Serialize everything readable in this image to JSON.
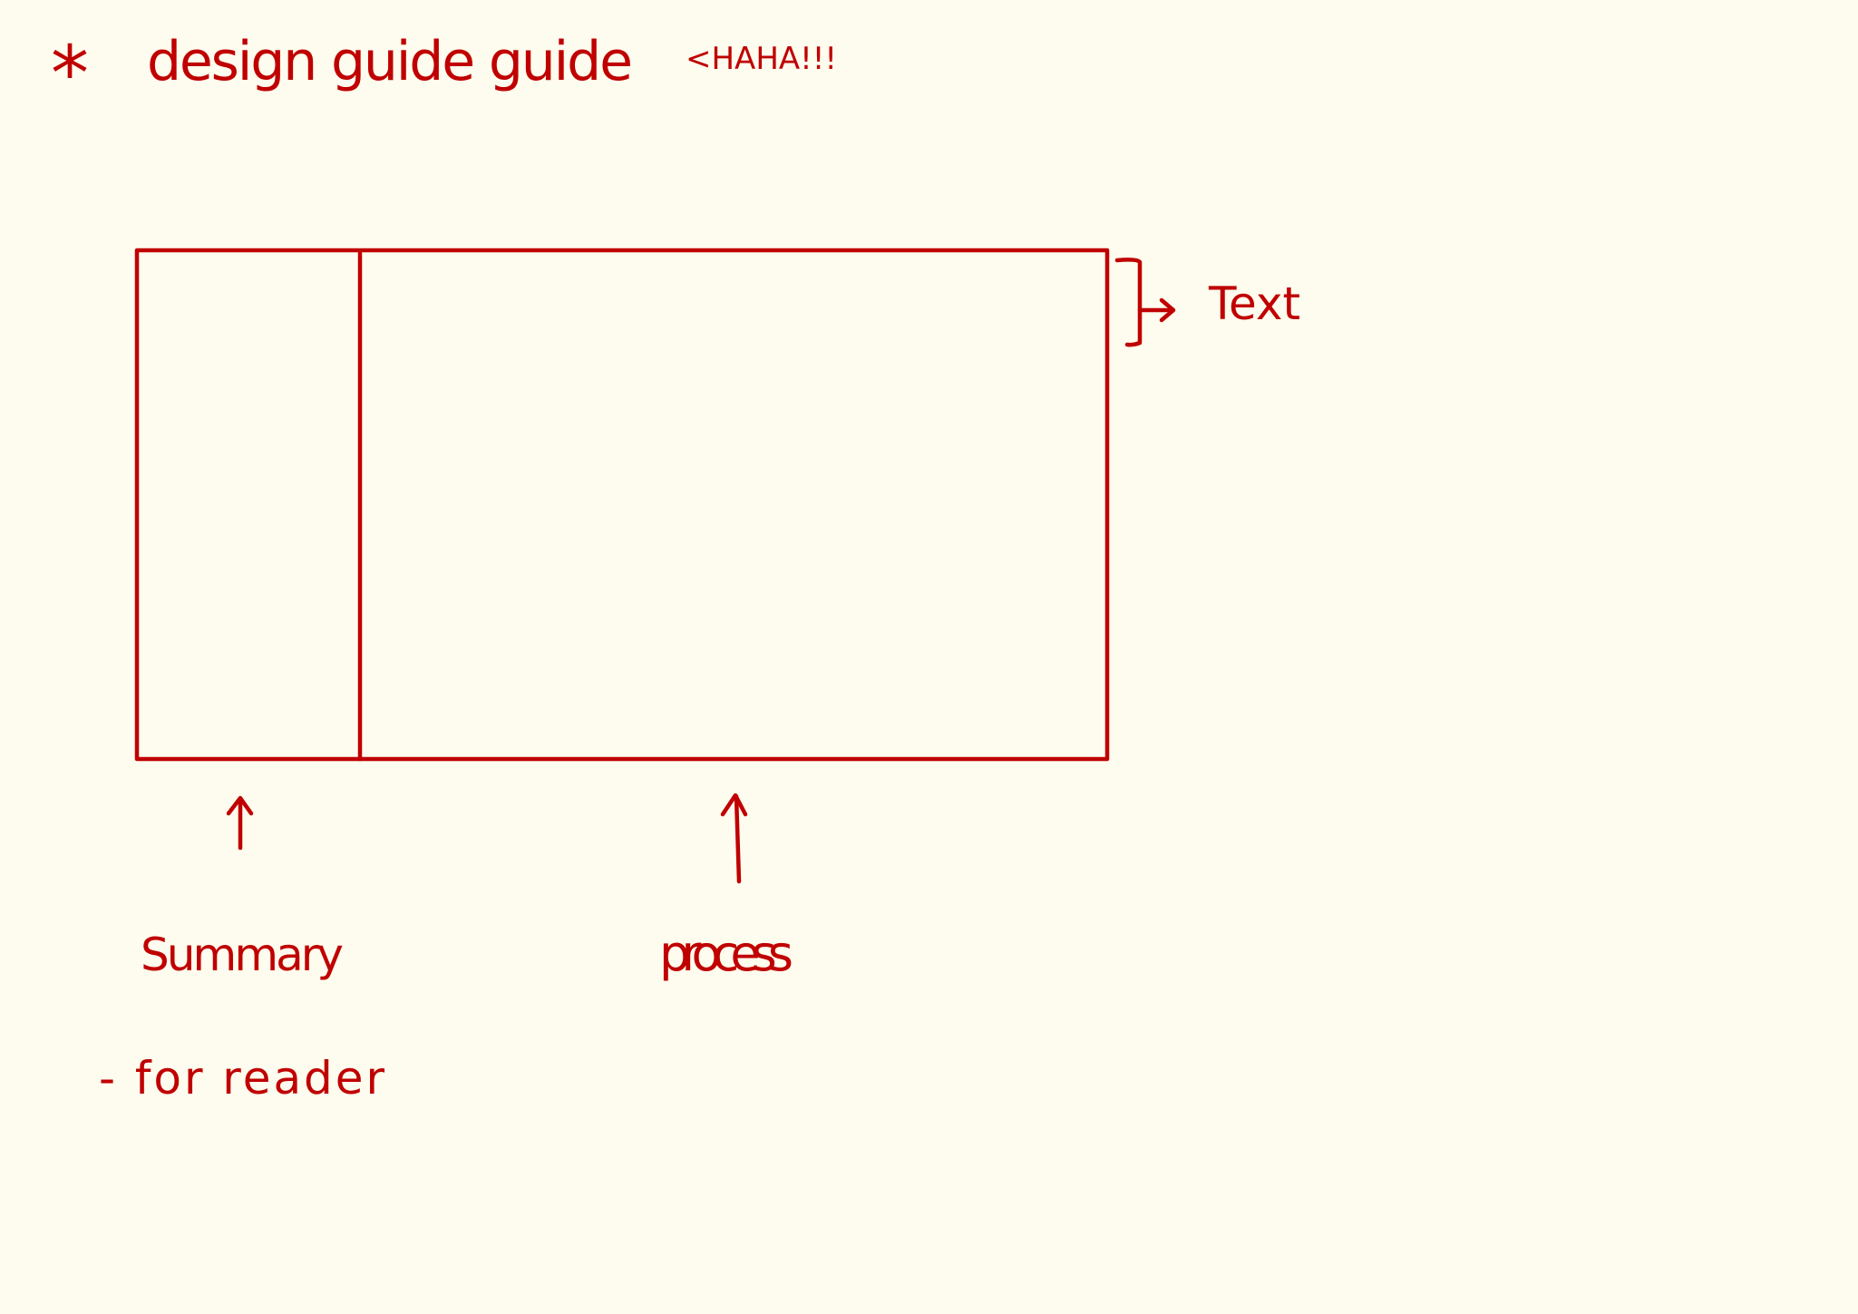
{
  "colors": {
    "background": "#fdfcee",
    "ink": "#c00000"
  },
  "header": {
    "bullet": "*",
    "text": "design guide guide",
    "aside": "<HAHA!!!"
  },
  "layout_sketch": {
    "side_label": "Text",
    "left_label": "Summary",
    "right_label": "process",
    "note": "- for reader"
  }
}
